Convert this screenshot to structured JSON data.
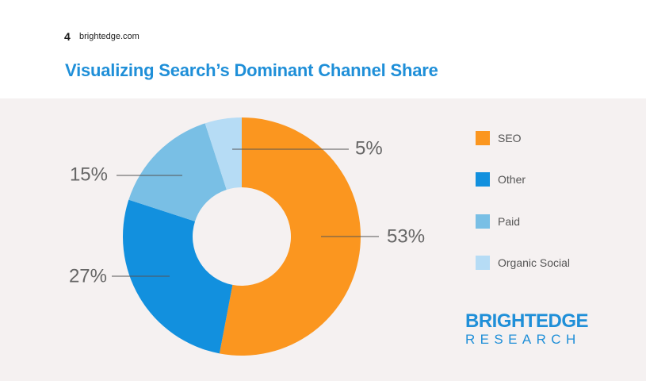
{
  "header": {
    "page_number": "4",
    "site": "brightedge.com",
    "title": "Visualizing Search’s Dominant Channel Share"
  },
  "logo": {
    "top": "BRIGHTEDGE",
    "bottom": "RESEARCH"
  },
  "chart_data": {
    "type": "pie",
    "donut": true,
    "categories": [
      "SEO",
      "Other",
      "Paid",
      "Organic Social"
    ],
    "values": [
      53,
      27,
      15,
      5
    ],
    "labels": [
      "53%",
      "27%",
      "15%",
      "5%"
    ],
    "colors": [
      "#fb961f",
      "#1290de",
      "#79bfe5",
      "#b6dcf5"
    ],
    "legend_position": "right"
  }
}
